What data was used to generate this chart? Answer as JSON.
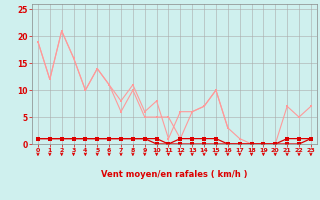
{
  "x": [
    0,
    1,
    2,
    3,
    4,
    5,
    6,
    7,
    8,
    9,
    10,
    11,
    12,
    13,
    14,
    15,
    16,
    17,
    18,
    19,
    20,
    21,
    22,
    23
  ],
  "series_light1": [
    19,
    12,
    21,
    16,
    10,
    14,
    11,
    8,
    11,
    6,
    8,
    1,
    6,
    6,
    7,
    10,
    3,
    null,
    null,
    null,
    null,
    null,
    null,
    null
  ],
  "series_light2": [
    19,
    12,
    21,
    16,
    10,
    14,
    11,
    6,
    10,
    5,
    5,
    5,
    1,
    6,
    7,
    10,
    3,
    1,
    0,
    0,
    0,
    7,
    5,
    7
  ],
  "series_dark1": [
    1,
    1,
    1,
    1,
    1,
    1,
    1,
    1,
    1,
    1,
    1,
    0,
    1,
    1,
    1,
    1,
    0,
    0,
    0,
    0,
    0,
    1,
    1,
    1
  ],
  "series_dark2": [
    1,
    1,
    1,
    1,
    1,
    1,
    1,
    1,
    1,
    1,
    0,
    0,
    0,
    0,
    0,
    0,
    0,
    0,
    0,
    0,
    0,
    0,
    0,
    1
  ],
  "bg_color": "#cff0ee",
  "grid_color": "#aaaaaa",
  "line_color_dark": "#dd0000",
  "line_color_light": "#ff9999",
  "xlabel": "Vent moyen/en rafales ( km/h )",
  "xlim": [
    -0.5,
    23.5
  ],
  "ylim": [
    0,
    26
  ],
  "yticks": [
    0,
    5,
    10,
    15,
    20,
    25
  ],
  "xticks": [
    0,
    1,
    2,
    3,
    4,
    5,
    6,
    7,
    8,
    9,
    10,
    11,
    12,
    13,
    14,
    15,
    16,
    17,
    18,
    19,
    20,
    21,
    22,
    23
  ]
}
